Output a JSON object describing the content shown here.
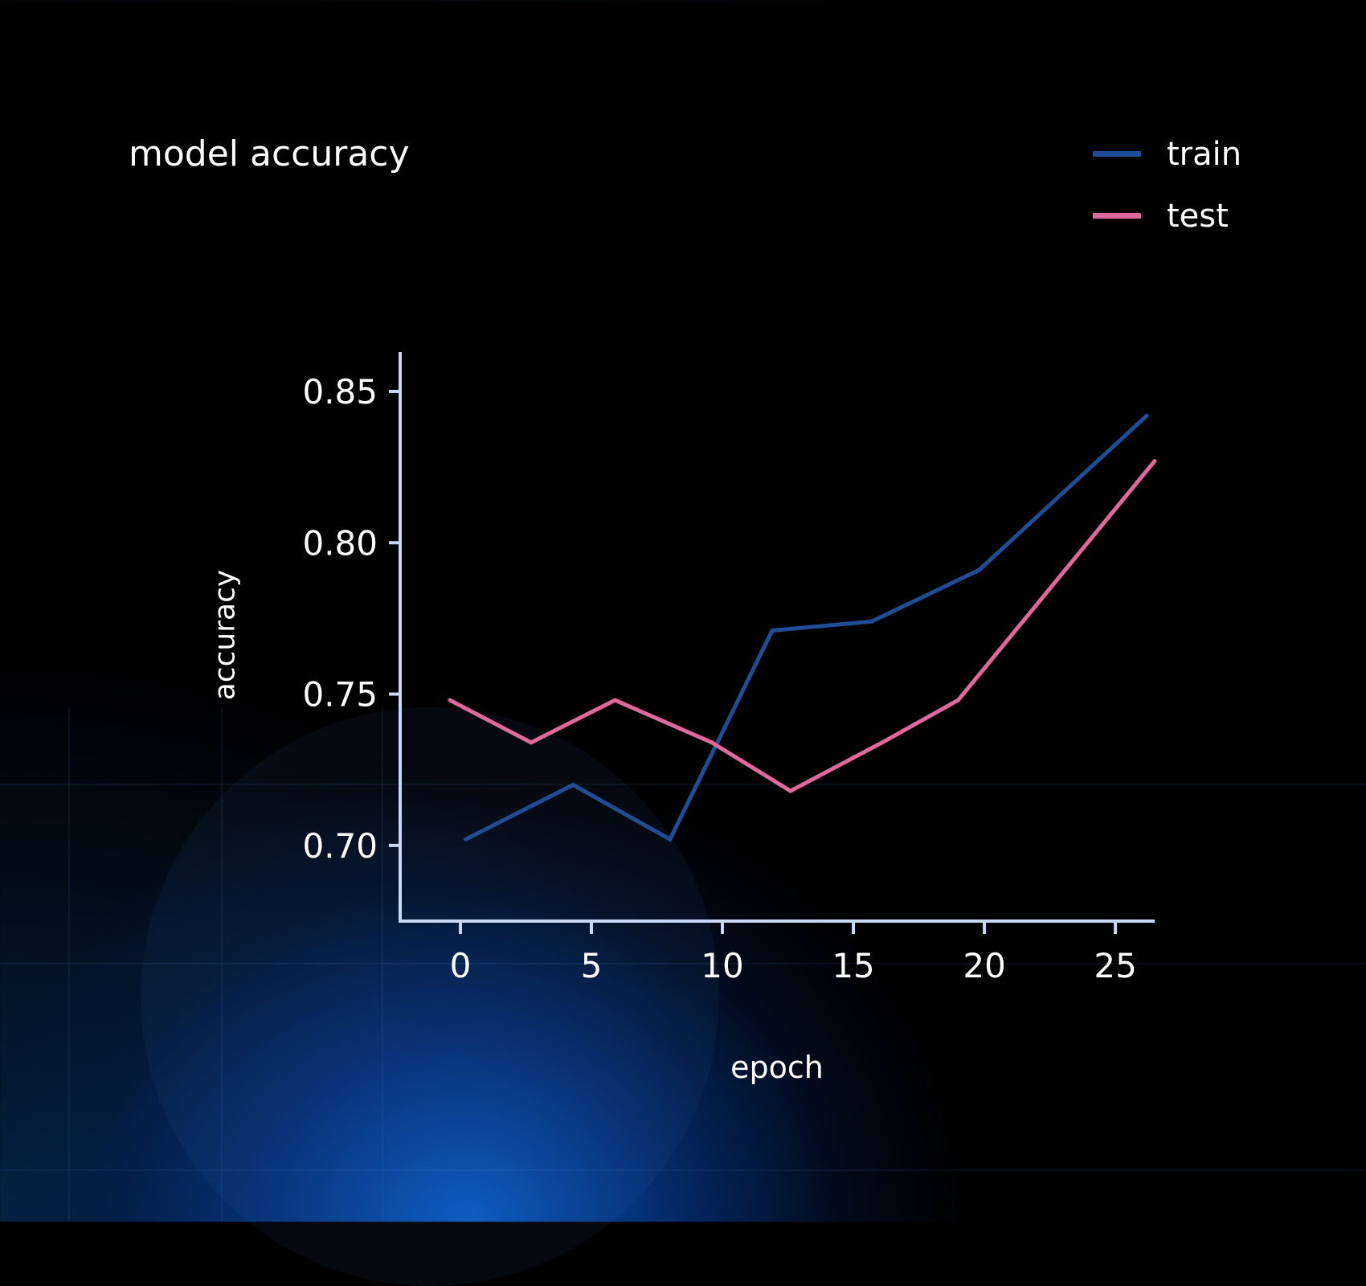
{
  "chart_data": {
    "type": "line",
    "title": "model accuracy",
    "xlabel": "epoch",
    "ylabel": "accuracy",
    "xlim": [
      -2.3,
      26.5
    ],
    "ylim": [
      0.675,
      0.863
    ],
    "xticks": [
      0,
      5,
      10,
      15,
      20,
      25
    ],
    "xtick_labels": [
      "0",
      "5",
      "10",
      "15",
      "20",
      "25"
    ],
    "yticks": [
      0.7,
      0.75,
      0.8,
      0.85
    ],
    "ytick_labels": [
      "0.70",
      "0.75",
      "0.80",
      "0.85"
    ],
    "grid": false,
    "legend_position": "top-right",
    "series": [
      {
        "name": "train",
        "color": "#1f4e96",
        "x": [
          0.2,
          4.3,
          8.0,
          11.9,
          15.7,
          19.8,
          26.2
        ],
        "y": [
          0.702,
          0.72,
          0.702,
          0.771,
          0.774,
          0.791,
          0.842
        ]
      },
      {
        "name": "test",
        "color": "#e0689a",
        "x": [
          -0.4,
          2.7,
          5.9,
          9.6,
          12.6,
          16.1,
          19.0,
          26.5
        ],
        "y": [
          0.748,
          0.734,
          0.748,
          0.734,
          0.718,
          0.734,
          0.748,
          0.827
        ]
      }
    ]
  },
  "legend": {
    "items": [
      {
        "label": "train",
        "color": "#1f4e96"
      },
      {
        "label": "test",
        "color": "#e0689a"
      }
    ]
  }
}
